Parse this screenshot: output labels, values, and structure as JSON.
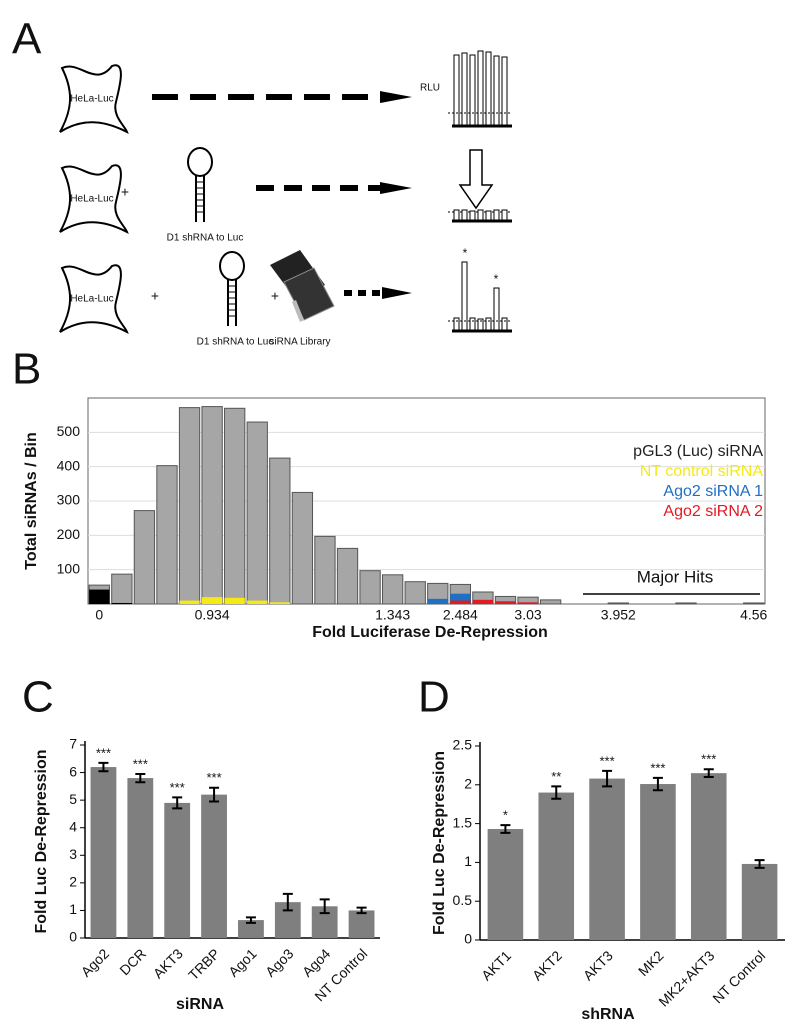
{
  "panel_a": {
    "label": "A",
    "rows": [
      {
        "cell": "HeLa-Luc",
        "readout": "RLU"
      },
      {
        "cell": "HeLa-Luc",
        "plus": "+",
        "shrna": "D1 shRNA to Luc"
      },
      {
        "cell": "HeLa-Luc",
        "plus": "+",
        "shrna": "D1 shRNA to Luc",
        "plus2": "+",
        "library": "siRNA Library",
        "hits": [
          "*",
          "*"
        ]
      }
    ]
  },
  "chart_data": [
    {
      "type": "histogram",
      "panel": "B",
      "xlabel": "Fold Luciferase De-Repression",
      "ylabel": "Total siRNAs / Bin",
      "categories": [
        "0",
        null,
        null,
        null,
        null,
        "0.934",
        null,
        null,
        null,
        null,
        null,
        null,
        null,
        "1.343",
        null,
        null,
        "2.484",
        null,
        null,
        "3.03",
        null,
        null,
        null,
        "3.952",
        null,
        null,
        null,
        null,
        null,
        "4.56"
      ],
      "values": [
        55,
        87,
        272,
        403,
        572,
        575,
        570,
        530,
        425,
        325,
        197,
        162,
        97,
        85,
        65,
        60,
        57,
        35,
        22,
        20,
        12,
        0,
        0,
        3,
        0,
        0,
        3,
        0,
        0,
        3
      ],
      "color": "#a6a6a6",
      "series": [
        {
          "name": "pGL3 (Luc) siRNA",
          "color": "#000000",
          "values": [
            42,
            3,
            0,
            0,
            0,
            0,
            0,
            0,
            0,
            0,
            0,
            0,
            0,
            0,
            0,
            0,
            0,
            0,
            0,
            0,
            0,
            0,
            0,
            0,
            0,
            0,
            0,
            0,
            0,
            0
          ]
        },
        {
          "name": "NT control siRNA",
          "color": "#f5ea14",
          "values": [
            0,
            0,
            0,
            0,
            10,
            20,
            18,
            10,
            5,
            0,
            0,
            0,
            0,
            0,
            0,
            0,
            0,
            0,
            0,
            0,
            0,
            0,
            0,
            0,
            0,
            0,
            0,
            0,
            0,
            0
          ]
        },
        {
          "name": "Ago2 siRNA 1",
          "color": "#1f6fc4",
          "values": [
            0,
            0,
            0,
            0,
            0,
            0,
            0,
            0,
            0,
            0,
            0,
            0,
            0,
            0,
            0,
            15,
            30,
            12,
            0,
            0,
            0,
            0,
            0,
            0,
            0,
            0,
            0,
            0,
            0,
            0
          ]
        },
        {
          "name": "Ago2 siRNA 2",
          "color": "#e31a22",
          "values": [
            0,
            0,
            0,
            0,
            0,
            0,
            0,
            0,
            0,
            0,
            0,
            0,
            0,
            0,
            0,
            0,
            10,
            12,
            8,
            5,
            0,
            0,
            0,
            0,
            0,
            0,
            0,
            0,
            0,
            0
          ]
        }
      ],
      "ylim": [
        0,
        600
      ],
      "yticks": [
        100,
        200,
        300,
        400,
        500
      ],
      "grid": true,
      "legend": "right",
      "annotation": "Major Hits"
    },
    {
      "type": "bar",
      "panel": "C",
      "xlabel": "siRNA",
      "ylabel": "Fold Luc De-Repression",
      "categories": [
        "Ago2",
        "DCR",
        "AKT3",
        "TRBP",
        "Ago1",
        "Ago3",
        "Ago4",
        "NT Control"
      ],
      "values": [
        6.2,
        5.8,
        4.9,
        5.2,
        0.65,
        1.3,
        1.15,
        1.0
      ],
      "errors": [
        0.15,
        0.15,
        0.2,
        0.25,
        0.1,
        0.3,
        0.25,
        0.1
      ],
      "significance": [
        "***",
        "***",
        "***",
        "***",
        null,
        null,
        null,
        null
      ],
      "color": "#7f7f7f",
      "ylim": [
        0,
        7
      ],
      "yticks": [
        0,
        1,
        2,
        3,
        4,
        5,
        6,
        7
      ]
    },
    {
      "type": "bar",
      "panel": "D",
      "xlabel": "shRNA",
      "ylabel": "Fold Luc De-Repression",
      "categories": [
        "AKT1",
        "AKT2",
        "AKT3",
        "MK2",
        "MK2+AKT3",
        "NT Control"
      ],
      "values": [
        1.43,
        1.9,
        2.08,
        2.01,
        2.15,
        0.98
      ],
      "errors": [
        0.05,
        0.08,
        0.1,
        0.08,
        0.05,
        0.05
      ],
      "significance": [
        "*",
        "**",
        "***",
        "***",
        "***",
        null
      ],
      "color": "#7f7f7f",
      "ylim": [
        0,
        2.5
      ],
      "yticks": [
        0,
        0.5,
        1,
        1.5,
        2,
        2.5
      ]
    }
  ]
}
